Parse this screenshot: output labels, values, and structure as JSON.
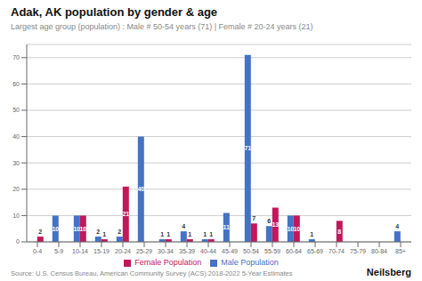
{
  "chart_data": {
    "type": "bar",
    "title": "Adak, AK population by gender & age",
    "subtitle": "Largest age group (population) : Male # 50-54 years (71) | Female # 20-24 years (21)",
    "annotations": [
      "Source: U.S. Census Bureau, American Community Survey (ACS) 2018-2022 5-Year Estimates",
      "Neilsberg"
    ],
    "categories": [
      "0-4",
      "5-9",
      "10-14",
      "15-19",
      "20-24",
      "25-29",
      "30-34",
      "35-39",
      "40-44",
      "45-49",
      "50-54",
      "55-59",
      "60-64",
      "65-69",
      "70-74",
      "75-79",
      "80-84",
      "85+"
    ],
    "series": [
      {
        "name": "Male Population",
        "color": "#4472c4",
        "values": [
          0,
          10,
          10,
          2,
          2,
          40,
          1,
          4,
          1,
          11,
          71,
          6,
          10,
          1,
          0,
          0,
          0,
          4
        ],
        "value_labels": [
          null,
          "10",
          "10",
          "2",
          "2",
          "40",
          "1",
          "4",
          "1",
          "11",
          "71",
          "6",
          "10",
          "1",
          null,
          null,
          null,
          "4"
        ]
      },
      {
        "name": "Female Population",
        "color": "#c2185b",
        "values": [
          2,
          0,
          10,
          1,
          21,
          0,
          1,
          1,
          1,
          0,
          7,
          13,
          10,
          0,
          8,
          0,
          0,
          0
        ],
        "value_labels": [
          "2",
          null,
          "10",
          "1",
          "21",
          null,
          "1",
          "1",
          "1",
          null,
          "7",
          "13",
          "10",
          null,
          "8",
          null,
          null,
          null
        ]
      }
    ],
    "ylim": [
      0,
      75
    ],
    "yticks": [
      0,
      10,
      20,
      30,
      40,
      50,
      60,
      70
    ],
    "grid": true,
    "legend": "bottom",
    "data_labels": true
  }
}
